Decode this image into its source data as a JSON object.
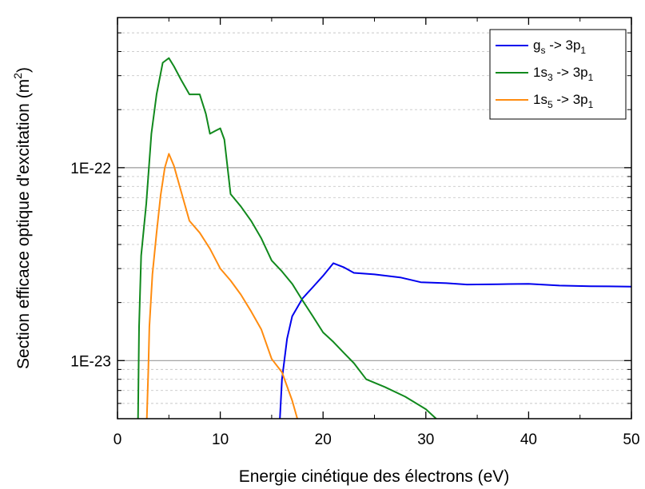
{
  "chart_data": {
    "type": "line",
    "xlabel": "Energie cinétique des électrons (eV)",
    "ylabel": "Section efficace optique d'excitation (m2)",
    "ylabel_parts": {
      "main": "Section efficace optique d'excitation (m",
      "sup": "2",
      "end": ")"
    },
    "xlim": [
      0,
      50
    ],
    "ylim": [
      5e-24,
      6e-22
    ],
    "yscale": "log",
    "x_ticks": [
      0,
      10,
      20,
      30,
      40,
      50
    ],
    "x_tick_labels": [
      "0",
      "10",
      "20",
      "30",
      "40",
      "50"
    ],
    "y_ticks": [
      1e-23,
      1e-22
    ],
    "y_tick_labels": [
      "1E-23",
      "1E-22"
    ],
    "grid": "horizontal-decades",
    "legend_position": "top-right",
    "series": [
      {
        "name": "gs -> 3p1",
        "label_parts": [
          "g",
          "s",
          " -> 3p",
          "1"
        ],
        "color": "#0000ee",
        "points": [
          [
            15.8,
            5e-24
          ],
          [
            16.0,
            8e-24
          ],
          [
            16.5,
            1.3e-23
          ],
          [
            17.0,
            1.7e-23
          ],
          [
            18.0,
            2.1e-23
          ],
          [
            19.0,
            2.4e-23
          ],
          [
            20.0,
            2.75e-23
          ],
          [
            21.0,
            3.2e-23
          ],
          [
            22.0,
            3.05e-23
          ],
          [
            23.0,
            2.85e-23
          ],
          [
            25.0,
            2.8e-23
          ],
          [
            27.5,
            2.7e-23
          ],
          [
            29.5,
            2.55e-23
          ],
          [
            32.0,
            2.52e-23
          ],
          [
            34.0,
            2.48e-23
          ],
          [
            37.0,
            2.49e-23
          ],
          [
            40.0,
            2.5e-23
          ],
          [
            43.0,
            2.45e-23
          ],
          [
            46.0,
            2.43e-23
          ],
          [
            50.0,
            2.42e-23
          ]
        ]
      },
      {
        "name": "1s3 -> 3p1",
        "label_parts": [
          "1s",
          "3",
          " -> 3p",
          "1"
        ],
        "color": "#11891d",
        "points": [
          [
            2.0,
            5e-24
          ],
          [
            2.1,
            1.5e-23
          ],
          [
            2.3,
            3.5e-23
          ],
          [
            2.8,
            6.5e-23
          ],
          [
            3.3,
            1.5e-22
          ],
          [
            3.8,
            2.4e-22
          ],
          [
            4.4,
            3.5e-22
          ],
          [
            5.0,
            3.7e-22
          ],
          [
            5.5,
            3.35e-22
          ],
          [
            6.2,
            2.85e-22
          ],
          [
            7.0,
            2.4e-22
          ],
          [
            8.0,
            2.4e-22
          ],
          [
            8.6,
            1.9e-22
          ],
          [
            9.0,
            1.5e-22
          ],
          [
            9.5,
            1.55e-22
          ],
          [
            10.0,
            1.6e-22
          ],
          [
            10.4,
            1.4e-22
          ],
          [
            11.0,
            7.3e-23
          ],
          [
            12.0,
            6.3e-23
          ],
          [
            13.0,
            5.3e-23
          ],
          [
            14.0,
            4.3e-23
          ],
          [
            15.0,
            3.3e-23
          ],
          [
            16.0,
            2.9e-23
          ],
          [
            17.0,
            2.5e-23
          ],
          [
            18.0,
            2.05e-23
          ],
          [
            19.0,
            1.7e-23
          ],
          [
            20.0,
            1.4e-23
          ],
          [
            21.0,
            1.25e-23
          ],
          [
            22.0,
            1.1e-23
          ],
          [
            23.0,
            9.7e-24
          ],
          [
            24.2,
            8e-24
          ],
          [
            26.0,
            7.3e-24
          ],
          [
            28.0,
            6.5e-24
          ],
          [
            30.0,
            5.6e-24
          ],
          [
            31.0,
            5e-24
          ]
        ]
      },
      {
        "name": "1s5 -> 3p1",
        "label_parts": [
          "1s",
          "5",
          " -> 3p",
          "1"
        ],
        "color": "#ff8c10",
        "points": [
          [
            2.85,
            5e-24
          ],
          [
            3.0,
            9e-24
          ],
          [
            3.1,
            1.5e-23
          ],
          [
            3.4,
            2.8e-23
          ],
          [
            3.8,
            4.6e-23
          ],
          [
            4.2,
            7.2e-23
          ],
          [
            4.6,
            1e-22
          ],
          [
            5.0,
            1.18e-22
          ],
          [
            5.5,
            1.02e-22
          ],
          [
            6.2,
            7.5e-23
          ],
          [
            7.0,
            5.3e-23
          ],
          [
            8.0,
            4.6e-23
          ],
          [
            9.0,
            3.8e-23
          ],
          [
            10.0,
            3e-23
          ],
          [
            11.0,
            2.6e-23
          ],
          [
            12.0,
            2.2e-23
          ],
          [
            13.0,
            1.8e-23
          ],
          [
            14.0,
            1.45e-23
          ],
          [
            15.0,
            1.02e-23
          ],
          [
            16.0,
            8.7e-24
          ],
          [
            17.0,
            6.2e-24
          ],
          [
            17.5,
            5e-24
          ]
        ]
      }
    ]
  }
}
